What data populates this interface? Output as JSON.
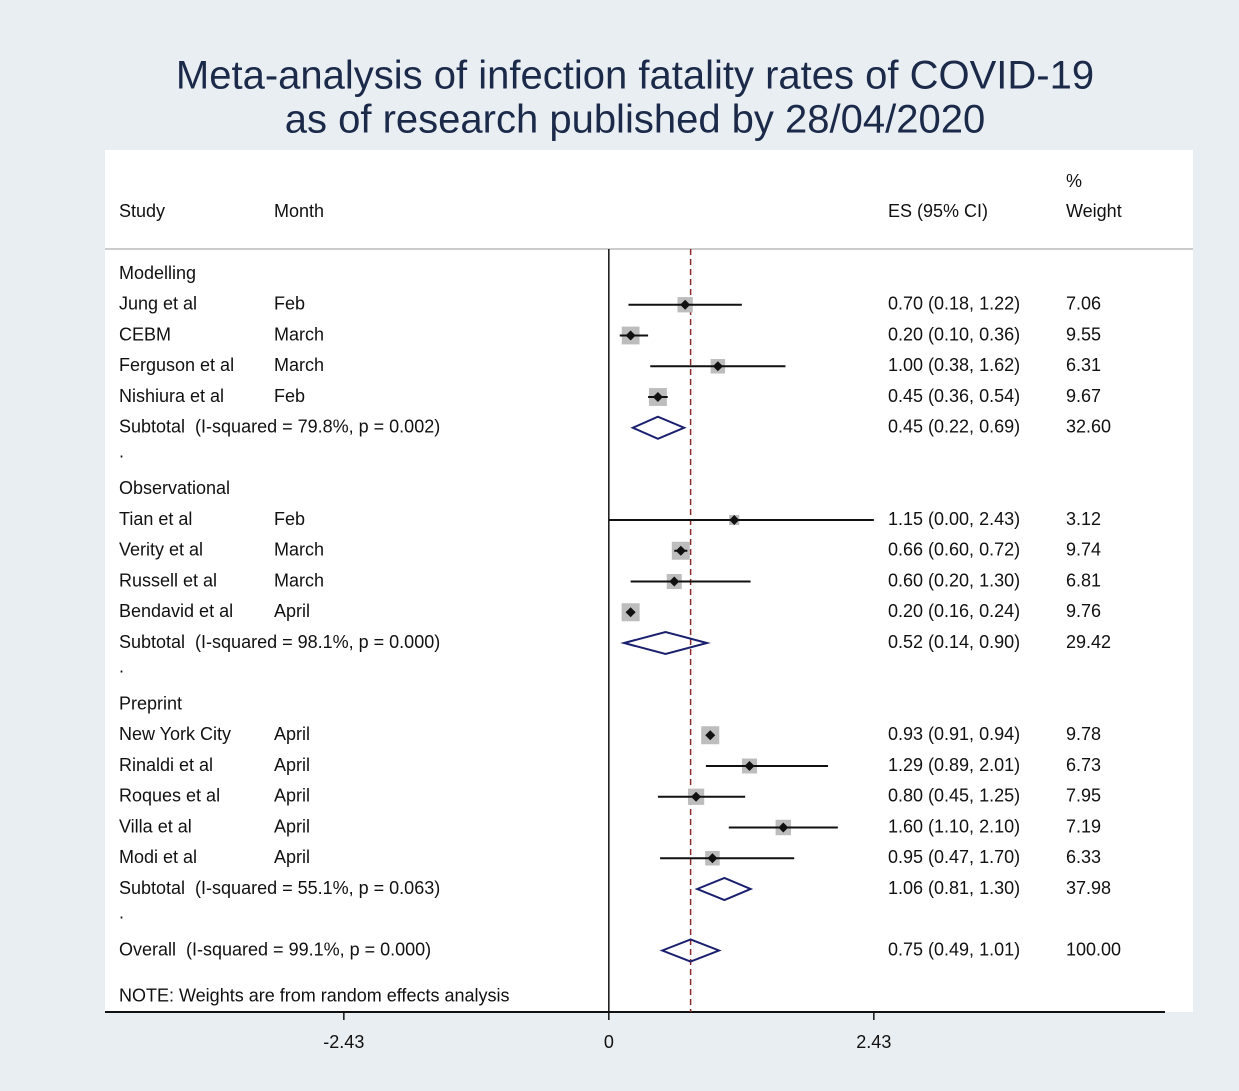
{
  "chart_data": {
    "type": "forest",
    "title": [
      "Meta-analysis of infection fatality rates of COVID-19",
      "as of research published by 28/04/2020"
    ],
    "columns": {
      "study": "Study",
      "month": "Month",
      "es": "ES (95% CI)",
      "weight_top": "%",
      "weight": "Weight"
    },
    "xlim": [
      -4.62,
      5.1
    ],
    "xticks": [
      -2.43,
      0,
      2.43
    ],
    "separator": ".",
    "groups": [
      {
        "name": "Modelling",
        "rows": [
          {
            "study": "Jung et al",
            "month": "Feb",
            "es": 0.7,
            "ci": [
              0.18,
              1.22
            ],
            "label": "0.70 (0.18, 1.22)",
            "weight": 7.06
          },
          {
            "study": "CEBM",
            "month": "March",
            "es": 0.2,
            "ci": [
              0.1,
              0.36
            ],
            "label": "0.20 (0.10, 0.36)",
            "weight": 9.55
          },
          {
            "study": "Ferguson et al",
            "month": "March",
            "es": 1.0,
            "ci": [
              0.38,
              1.62
            ],
            "label": "1.00 (0.38, 1.62)",
            "weight": 6.31
          },
          {
            "study": "Nishiura et al",
            "month": "Feb",
            "es": 0.45,
            "ci": [
              0.36,
              0.54
            ],
            "label": "0.45 (0.36, 0.54)",
            "weight": 9.67
          }
        ],
        "subtotal": {
          "text": "Subtotal  (I-squared = 79.8%, p = 0.002)",
          "es": 0.45,
          "ci": [
            0.22,
            0.69
          ],
          "label": "0.45 (0.22, 0.69)",
          "weight": 32.6,
          "weight_label": "32.60"
        }
      },
      {
        "name": "Observational",
        "rows": [
          {
            "study": "Tian et al",
            "month": "Feb",
            "es": 1.15,
            "ci": [
              0.0,
              2.43
            ],
            "label": "1.15 (0.00, 2.43)",
            "weight": 3.12
          },
          {
            "study": "Verity et al",
            "month": "March",
            "es": 0.66,
            "ci": [
              0.6,
              0.72
            ],
            "label": "0.66 (0.60, 0.72)",
            "weight": 9.74
          },
          {
            "study": "Russell et al",
            "month": "March",
            "es": 0.6,
            "ci": [
              0.2,
              1.3
            ],
            "label": "0.60 (0.20, 1.30)",
            "weight": 6.81
          },
          {
            "study": "Bendavid et al",
            "month": "April",
            "es": 0.2,
            "ci": [
              0.16,
              0.24
            ],
            "label": "0.20 (0.16, 0.24)",
            "weight": 9.76
          }
        ],
        "subtotal": {
          "text": "Subtotal  (I-squared = 98.1%, p = 0.000)",
          "es": 0.52,
          "ci": [
            0.14,
            0.9
          ],
          "label": "0.52 (0.14, 0.90)",
          "weight": 29.42
        }
      },
      {
        "name": "Preprint",
        "rows": [
          {
            "study": "New York City",
            "month": "April",
            "es": 0.93,
            "ci": [
              0.91,
              0.94
            ],
            "label": "0.93 (0.91, 0.94)",
            "weight": 9.78
          },
          {
            "study": "Rinaldi et al",
            "month": "April",
            "es": 1.29,
            "ci": [
              0.89,
              2.01
            ],
            "label": "1.29 (0.89, 2.01)",
            "weight": 6.73
          },
          {
            "study": "Roques et al",
            "month": "April",
            "es": 0.8,
            "ci": [
              0.45,
              1.25
            ],
            "label": "0.80 (0.45, 1.25)",
            "weight": 7.95
          },
          {
            "study": "Villa et al",
            "month": "April",
            "es": 1.6,
            "ci": [
              1.1,
              2.1
            ],
            "label": "1.60 (1.10, 2.10)",
            "weight": 7.19
          },
          {
            "study": "Modi et al",
            "month": "April",
            "es": 0.95,
            "ci": [
              0.47,
              1.7
            ],
            "label": "0.95 (0.47, 1.70)",
            "weight": 6.33
          }
        ],
        "subtotal": {
          "text": "Subtotal  (I-squared = 55.1%, p = 0.063)",
          "es": 1.06,
          "ci": [
            0.81,
            1.3
          ],
          "label": "1.06 (0.81, 1.30)",
          "weight": 37.98
        }
      }
    ],
    "overall": {
      "text": "Overall  (I-squared = 99.1%, p = 0.000)",
      "es": 0.75,
      "ci": [
        0.49,
        1.01
      ],
      "label": "0.75 (0.49, 1.01)",
      "weight": 100,
      "weight_label": "100.00"
    },
    "note": "NOTE: Weights are from random effects analysis"
  }
}
